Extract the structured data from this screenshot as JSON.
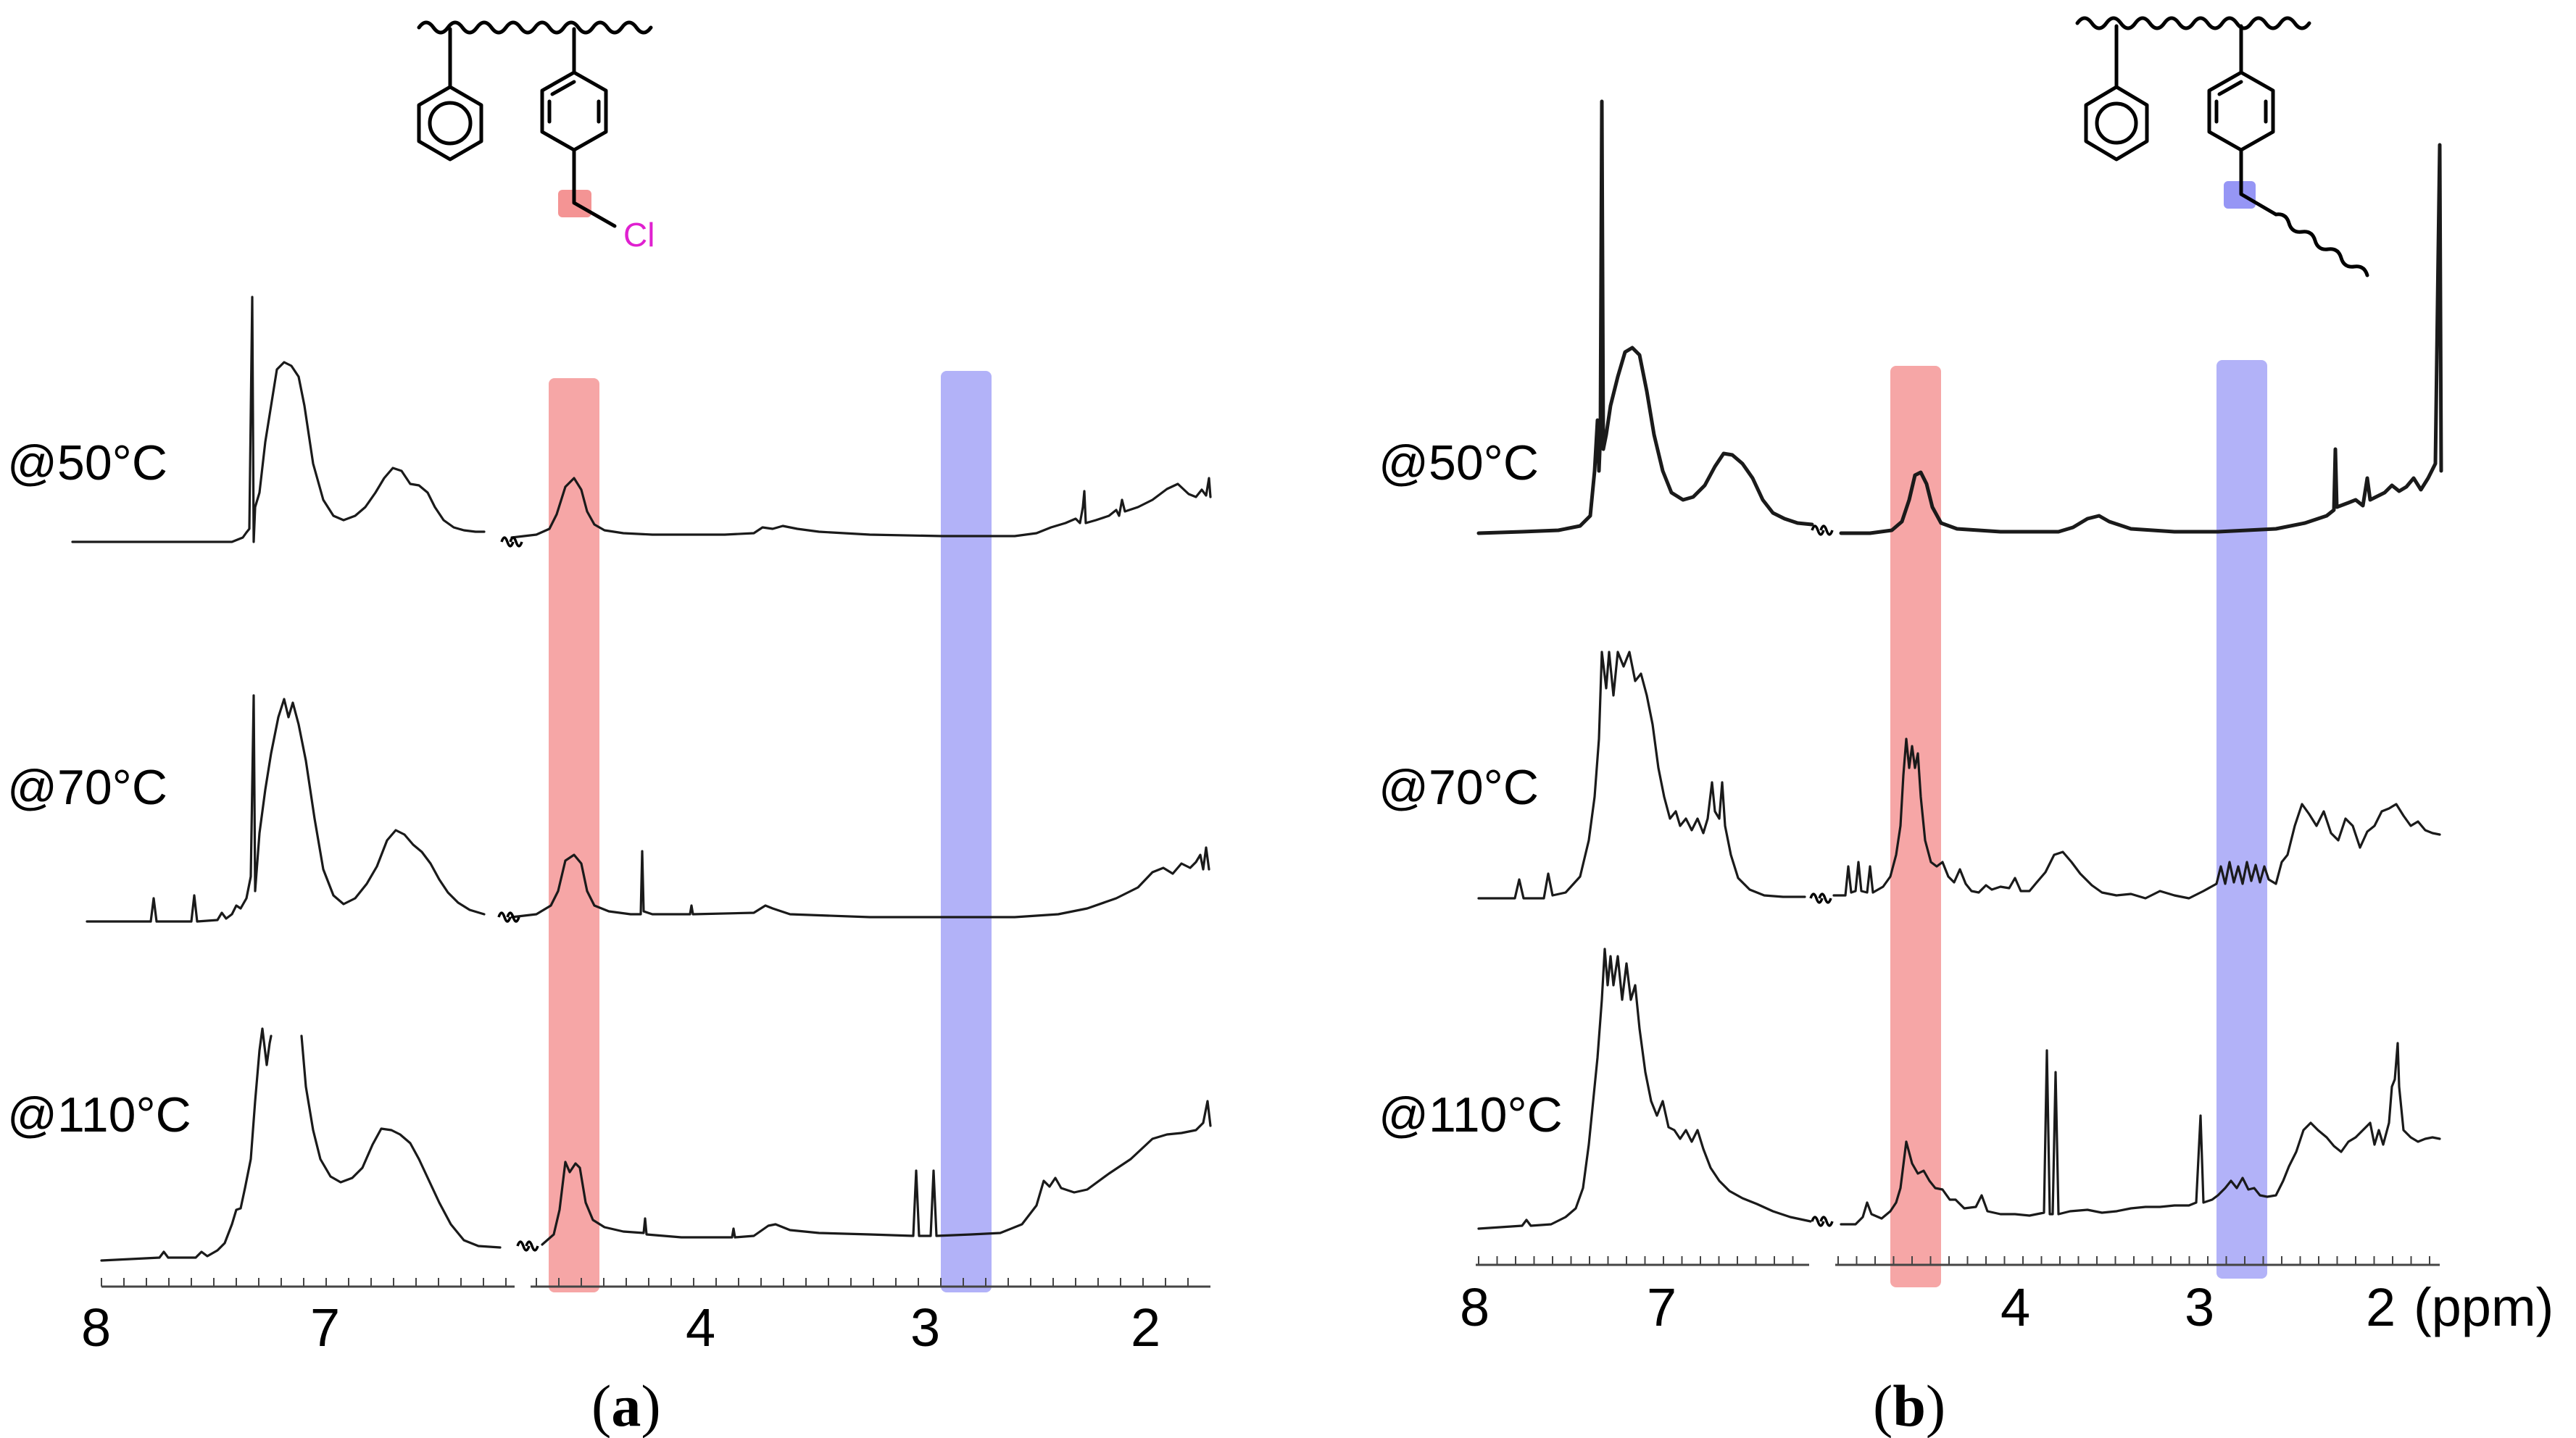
{
  "chart_data": [
    {
      "panel": "a",
      "type": "line",
      "title": "",
      "xlabel": "",
      "x_axis_ticks": [
        "8",
        "7",
        "4",
        "3",
        "2"
      ],
      "x_range_ppm": [
        8,
        1.8
      ],
      "x_break_ppm": [
        6,
        5
      ],
      "highlight_bands": [
        {
          "name": "CH2Cl",
          "center_ppm": 4.55,
          "color": "#f06b6b"
        },
        {
          "name": "CH2 linked",
          "center_ppm": 2.8,
          "color": "#6f6ff0"
        }
      ],
      "structure_labels": [
        "Cl"
      ],
      "series": [
        {
          "name": "@50°C",
          "peaks_ppm": [
            7.35,
            7.1,
            6.6,
            4.55,
            3.7,
            2.3,
            2.1,
            1.9
          ]
        },
        {
          "name": "@70°C",
          "peaks_ppm": [
            7.8,
            7.6,
            7.35,
            7.1,
            6.6,
            4.55,
            4.2,
            3.7,
            2.0
          ]
        },
        {
          "name": "@110°C",
          "peaks_ppm": [
            7.3,
            7.1,
            6.6,
            4.5,
            4.2,
            3.7,
            3.0,
            2.9,
            2.3,
            1.9
          ]
        }
      ]
    },
    {
      "panel": "b",
      "type": "line",
      "title": "",
      "xlabel": "(ppm)",
      "x_axis_ticks": [
        "8",
        "7",
        "4",
        "3",
        "2"
      ],
      "x_range_ppm": [
        8,
        1.7
      ],
      "x_break_ppm": [
        6,
        5
      ],
      "highlight_bands": [
        {
          "name": "CH2Cl",
          "center_ppm": 4.55,
          "color": "#f06b6b"
        },
        {
          "name": "CH2 linked",
          "center_ppm": 2.8,
          "color": "#6f6ff0"
        }
      ],
      "structure_labels": [],
      "series": [
        {
          "name": "@50°C",
          "peaks_ppm": [
            7.4,
            7.15,
            6.6,
            4.55,
            3.6,
            2.3,
            2.1,
            1.8
          ]
        },
        {
          "name": "@70°C",
          "peaks_ppm": [
            7.3,
            7.1,
            6.7,
            6.6,
            4.55,
            3.7,
            2.8,
            2.2,
            1.9
          ]
        },
        {
          "name": "@110°C",
          "peaks_ppm": [
            7.3,
            7.1,
            6.9,
            6.6,
            4.55,
            3.8,
            3.7,
            3.0,
            2.8,
            2.2,
            1.9
          ]
        }
      ]
    }
  ],
  "labels": {
    "panel_a_open": "(",
    "panel_a_letter": "a",
    "panel_a_close": ")",
    "panel_b_open": "(",
    "panel_b_letter": "b",
    "panel_b_close": ")"
  },
  "colors": {
    "red_band": "#f07070",
    "blue_band": "#7373f2",
    "cl_text": "#e020d0"
  }
}
